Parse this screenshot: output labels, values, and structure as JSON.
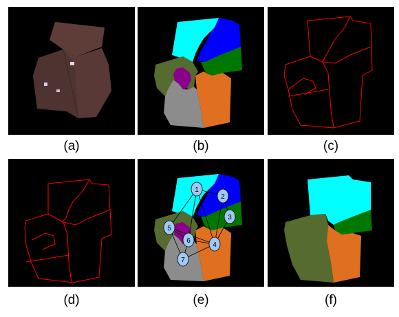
{
  "captions": {
    "a": "(a)",
    "b": "(b)",
    "c": "(c)",
    "d": "(d)",
    "e": "(e)",
    "f": "(f)"
  },
  "graph_nodes": [
    "1",
    "2",
    "3",
    "4",
    "5",
    "6",
    "7"
  ],
  "colors": {
    "background": "#000000",
    "roof": "#5a3a36",
    "cyan": "#00ffff",
    "blue": "#0000ff",
    "green": "#007800",
    "olive": "#556b2f",
    "purple": "#8b008b",
    "orange": "#e07020",
    "gray": "#8c8c8c",
    "outline": "#ff0000",
    "node_fill": "#9ec9f5"
  }
}
